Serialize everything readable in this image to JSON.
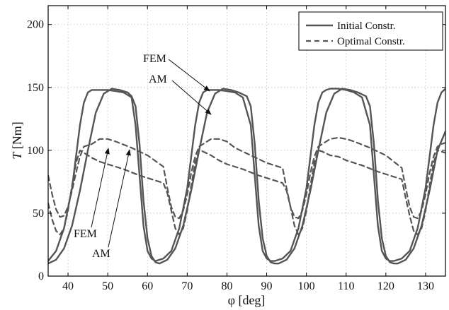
{
  "chart_data": {
    "type": "line",
    "xlabel": "φ [deg]",
    "ylabel_italic": "T",
    "ylabel_unit": " [Nm]",
    "xlim": [
      35,
      135
    ],
    "ylim": [
      0,
      215
    ],
    "xticks": [
      40,
      50,
      60,
      70,
      80,
      90,
      100,
      110,
      120,
      130
    ],
    "yticks": [
      0,
      50,
      100,
      150,
      200
    ],
    "grid": true,
    "legend_position": "top-right",
    "legend": [
      {
        "label": "Initial Constr.",
        "style": "solid"
      },
      {
        "label": "Optimal Constr.",
        "style": "dashed"
      }
    ],
    "line_color": "#555555",
    "series": [
      {
        "name": "Initial Constr.",
        "style": "solid",
        "model": "FEM",
        "x": [
          35,
          37,
          39,
          41,
          42,
          43,
          44,
          45,
          46,
          48,
          50,
          52,
          54,
          56,
          57,
          58,
          59,
          60,
          61,
          62,
          64,
          66,
          68,
          70,
          71,
          72,
          73,
          74,
          75,
          76,
          78,
          80,
          82,
          84,
          86,
          87,
          88,
          89,
          90,
          91,
          92,
          94,
          96,
          98,
          100,
          101,
          102,
          103,
          104,
          105,
          106,
          108,
          110,
          112,
          114,
          116,
          117,
          118,
          119,
          120,
          121,
          122,
          124,
          126,
          128,
          130,
          131,
          132,
          133,
          134,
          135
        ],
        "y": [
          12,
          20,
          38,
          70,
          95,
          120,
          138,
          146,
          148,
          148,
          148,
          147,
          146,
          142,
          120,
          80,
          40,
          20,
          14,
          12,
          14,
          20,
          38,
          70,
          95,
          120,
          138,
          146,
          148,
          148,
          148,
          147,
          146,
          142,
          120,
          80,
          40,
          20,
          14,
          12,
          12,
          14,
          20,
          38,
          70,
          95,
          120,
          138,
          146,
          148,
          149,
          149,
          148,
          146,
          142,
          120,
          80,
          40,
          20,
          14,
          12,
          12,
          14,
          20,
          38,
          70,
          95,
          120,
          138,
          146,
          149
        ]
      },
      {
        "name": "Initial Constr.",
        "style": "solid",
        "model": "AM",
        "x": [
          35,
          37,
          39,
          41,
          43,
          45,
          47,
          49,
          51,
          53,
          55,
          56,
          57,
          58,
          59,
          60,
          61,
          62,
          63,
          65,
          67,
          69,
          71,
          73,
          75,
          77,
          79,
          81,
          83,
          85,
          86,
          87,
          88,
          89,
          90,
          91,
          92,
          93,
          95,
          97,
          99,
          101,
          103,
          105,
          107,
          109,
          111,
          113,
          115,
          116,
          117,
          118,
          119,
          120,
          121,
          122,
          123,
          125,
          127,
          129,
          131,
          133,
          135
        ],
        "y": [
          10,
          13,
          22,
          40,
          68,
          100,
          130,
          145,
          149,
          148,
          146,
          143,
          135,
          105,
          60,
          30,
          16,
          11,
          10,
          13,
          22,
          40,
          68,
          100,
          130,
          145,
          149,
          148,
          146,
          143,
          135,
          105,
          60,
          30,
          16,
          11,
          10,
          10,
          13,
          22,
          40,
          68,
          100,
          130,
          145,
          149,
          148,
          146,
          143,
          135,
          105,
          60,
          30,
          16,
          11,
          10,
          10,
          13,
          22,
          40,
          68,
          100,
          115
        ]
      },
      {
        "name": "Optimal Constr.",
        "style": "dashed",
        "model": "FEM",
        "x": [
          35,
          36,
          37,
          38,
          39,
          40,
          41,
          42,
          43,
          44,
          46,
          48,
          50,
          54,
          58,
          62,
          64,
          65,
          66,
          67,
          68,
          69,
          70,
          71,
          72,
          73,
          74,
          76,
          78,
          80,
          84,
          88,
          92,
          94,
          95,
          96,
          97,
          98,
          99,
          100,
          101,
          102,
          103,
          104,
          106,
          108,
          110,
          114,
          118,
          122,
          124,
          125,
          126,
          127,
          128,
          129,
          130,
          131,
          132,
          133,
          135
        ],
        "y": [
          58,
          45,
          36,
          33,
          38,
          52,
          72,
          90,
          100,
          98,
          94,
          91,
          89,
          85,
          80,
          76,
          74,
          66,
          52,
          38,
          33,
          38,
          52,
          72,
          90,
          100,
          99,
          96,
          92,
          89,
          85,
          80,
          76,
          74,
          68,
          55,
          40,
          33,
          38,
          52,
          72,
          90,
          100,
          99,
          96,
          95,
          92,
          88,
          83,
          79,
          77,
          62,
          48,
          36,
          33,
          38,
          52,
          72,
          90,
          100,
          98
        ]
      },
      {
        "name": "Optimal Constr.",
        "style": "dashed",
        "model": "AM",
        "x": [
          35,
          36,
          37,
          38,
          39,
          40,
          41,
          42,
          43,
          44,
          46,
          48,
          50,
          52,
          56,
          60,
          64,
          65,
          66,
          67,
          68,
          69,
          70,
          71,
          72,
          73,
          74,
          76,
          78,
          80,
          82,
          86,
          90,
          94,
          95,
          96,
          97,
          98,
          99,
          100,
          101,
          102,
          103,
          104,
          106,
          108,
          110,
          112,
          116,
          120,
          124,
          125,
          126,
          127,
          128,
          129,
          130,
          131,
          132,
          133,
          134,
          135
        ],
        "y": [
          80,
          65,
          53,
          47,
          48,
          55,
          68,
          82,
          95,
          103,
          105,
          109,
          109,
          107,
          102,
          96,
          87,
          70,
          55,
          47,
          46,
          52,
          65,
          82,
          95,
          103,
          105,
          109,
          109,
          107,
          102,
          96,
          90,
          86,
          70,
          55,
          47,
          46,
          52,
          65,
          82,
          95,
          103,
          105,
          109,
          110,
          109,
          107,
          102,
          96,
          86,
          70,
          55,
          47,
          46,
          52,
          65,
          82,
          95,
          103,
          105,
          106
        ]
      }
    ],
    "annotations": [
      {
        "text": "FEM",
        "points_to": [
          74.5,
          146
        ]
      },
      {
        "text": "AM",
        "points_to": [
          75.5,
          128
        ]
      },
      {
        "text": "FEM",
        "points_to": [
          50.5,
          92
        ]
      },
      {
        "text": "AM",
        "points_to": [
          55.5,
          102
        ]
      }
    ]
  }
}
